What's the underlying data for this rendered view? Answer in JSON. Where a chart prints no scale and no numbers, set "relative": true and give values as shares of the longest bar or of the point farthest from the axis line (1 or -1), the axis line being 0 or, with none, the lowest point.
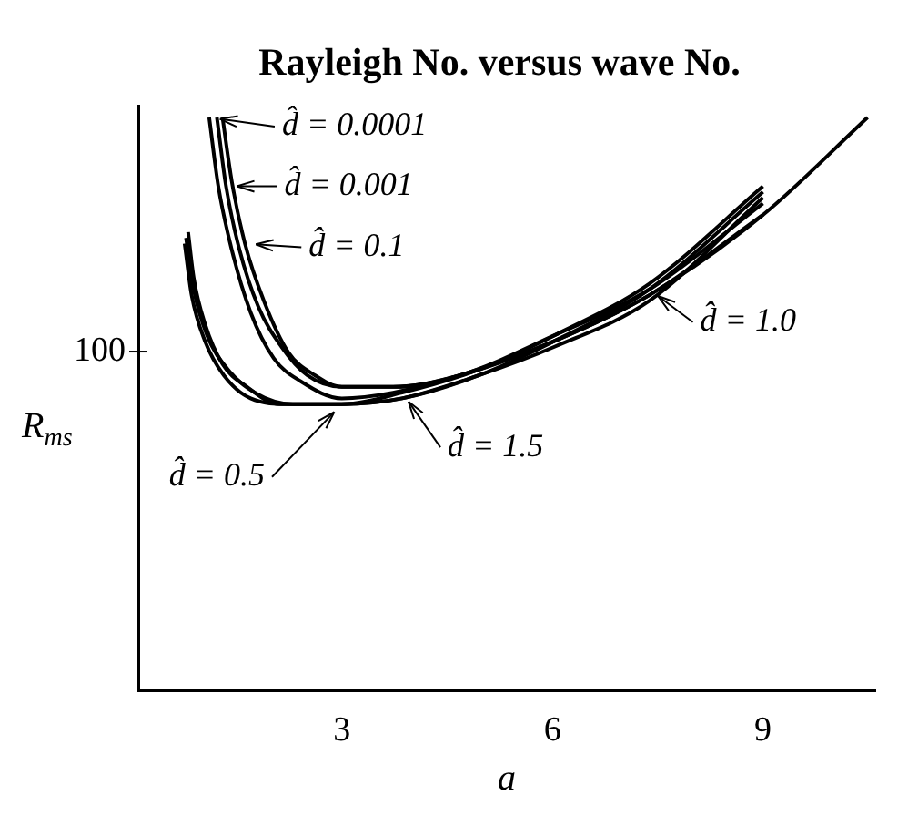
{
  "chart_data": {
    "type": "line",
    "title": "Rayleigh No. versus wave No.",
    "xlabel": "a",
    "ylabel": "R$_{ms}$",
    "relative": true,
    "xlim": [
      0.1,
      10.6
    ],
    "xticks": [
      3,
      6,
      9
    ],
    "grid": false,
    "legend": "top left",
    "marker": "none",
    "color": "#000000",
    "annotations": [
      "100"
    ],
    "series": [
      {
        "name": "d̂ = 0.0001",
        "x": [
          1.11,
          1.24,
          1.43,
          1.7,
          2.03,
          2.41,
          3,
          3.73,
          4.68,
          6.03,
          7.38,
          9,
          10.49
        ],
        "values": [
          1,
          0.88,
          0.77,
          0.66,
          0.58,
          0.54,
          0.51,
          0.52,
          0.55,
          0.61,
          0.69,
          0.83,
          1
        ]
      },
      {
        "name": "d̂ = 0.001",
        "x": [
          1.22,
          1.35,
          1.54,
          1.81,
          2.14,
          2.51,
          3,
          3.73,
          4.68,
          6.03,
          7.38,
          9
        ],
        "values": [
          1,
          0.88,
          0.77,
          0.67,
          0.6,
          0.55,
          0.53,
          0.53,
          0.55,
          0.61,
          0.69,
          0.83
        ]
      },
      {
        "name": "d̂ = 0.1",
        "x": [
          1.3,
          1.43,
          1.62,
          1.89,
          2.24,
          2.62,
          3,
          3.73,
          4.68,
          6.03,
          7.38,
          9
        ],
        "values": [
          1,
          0.89,
          0.78,
          0.68,
          0.59,
          0.55,
          0.53,
          0.53,
          0.55,
          0.62,
          0.7,
          0.85
        ]
      },
      {
        "name": "d̂ = 0.5",
        "x": [
          0.81,
          0.89,
          1.05,
          1.3,
          1.65,
          2.11,
          3,
          3.86,
          4.95,
          6.03,
          7.38,
          9
        ],
        "values": [
          0.8,
          0.72,
          0.64,
          0.57,
          0.53,
          0.5,
          0.5,
          0.51,
          0.55,
          0.6,
          0.68,
          0.86
        ]
      },
      {
        "name": "d̂ = 1.0",
        "x": [
          0.76,
          0.86,
          1.05,
          1.32,
          1.7,
          2.24,
          3,
          3.86,
          4.95,
          6.03,
          7.38,
          9
        ],
        "values": [
          0.78,
          0.69,
          0.61,
          0.55,
          0.51,
          0.5,
          0.5,
          0.51,
          0.55,
          0.61,
          0.7,
          0.87
        ]
      },
      {
        "name": "d̂ = 1.5",
        "x": [
          0.78,
          0.89,
          1.08,
          1.38,
          1.76,
          2.3,
          3,
          3.86,
          4.95,
          6.03,
          7.38,
          9
        ],
        "values": [
          0.79,
          0.7,
          0.62,
          0.56,
          0.52,
          0.5,
          0.5,
          0.52,
          0.56,
          0.62,
          0.71,
          0.88
        ]
      }
    ]
  }
}
